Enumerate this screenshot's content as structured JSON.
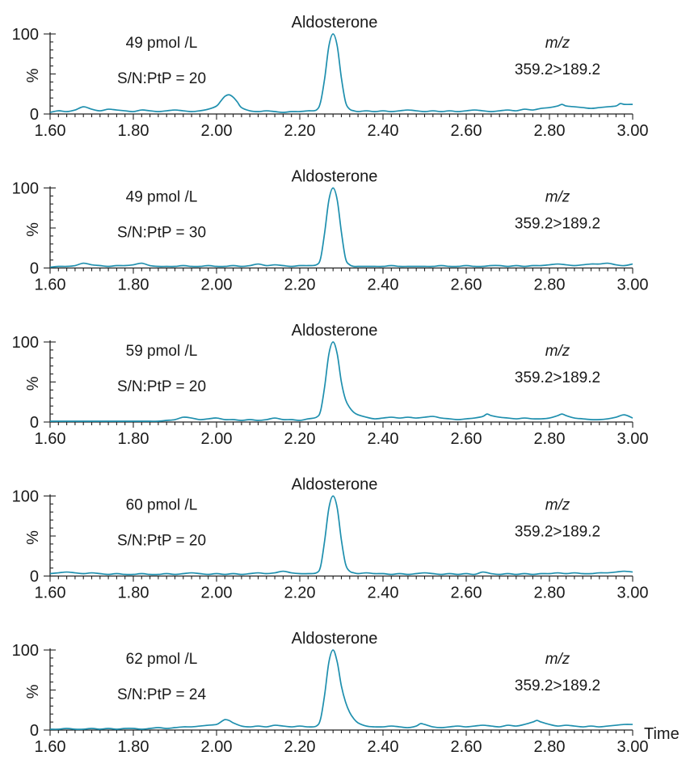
{
  "colors": {
    "trace": "#1e8fae",
    "axis": "#222222",
    "text": "#1a1a1a"
  },
  "x_axis_title": "Time",
  "chart_data": [
    {
      "type": "line",
      "title": "Aldosterone",
      "ylabel": "%",
      "xlim": [
        1.6,
        3.0
      ],
      "ylim": [
        0,
        100
      ],
      "x_ticks": [
        "1.60",
        "1.80",
        "2.00",
        "2.20",
        "2.40",
        "2.60",
        "2.80",
        "3.00"
      ],
      "y_ticks": [
        "100",
        "0"
      ],
      "annotations": {
        "concentration": "49 pmol /L",
        "snr": "S/N:PtP = 20",
        "mz_label": "m/z",
        "transition": "359.2>189.2"
      },
      "series": [
        {
          "x": [
            1.6,
            1.62,
            1.64,
            1.66,
            1.68,
            1.7,
            1.72,
            1.74,
            1.76,
            1.78,
            1.8,
            1.82,
            1.84,
            1.86,
            1.88,
            1.9,
            1.92,
            1.94,
            1.96,
            1.98,
            2.0,
            2.01,
            2.02,
            2.03,
            2.04,
            2.05,
            2.06,
            2.08,
            2.1,
            2.12,
            2.14,
            2.16,
            2.18,
            2.2,
            2.22,
            2.24,
            2.25,
            2.26,
            2.27,
            2.28,
            2.29,
            2.3,
            2.31,
            2.32,
            2.33,
            2.34,
            2.36,
            2.38,
            2.4,
            2.42,
            2.44,
            2.46,
            2.48,
            2.5,
            2.52,
            2.54,
            2.56,
            2.58,
            2.6,
            2.62,
            2.64,
            2.66,
            2.68,
            2.7,
            2.72,
            2.74,
            2.76,
            2.78,
            2.8,
            2.82,
            2.83,
            2.84,
            2.86,
            2.88,
            2.9,
            2.92,
            2.94,
            2.96,
            2.97,
            2.98,
            3.0
          ],
          "y": [
            2,
            4,
            3,
            5,
            9,
            6,
            4,
            6,
            5,
            4,
            3,
            5,
            4,
            3,
            4,
            5,
            4,
            3,
            4,
            6,
            10,
            16,
            22,
            24,
            21,
            15,
            8,
            4,
            3,
            4,
            3,
            2,
            3,
            3,
            4,
            5,
            15,
            45,
            85,
            100,
            85,
            45,
            15,
            6,
            4,
            3,
            4,
            3,
            4,
            3,
            4,
            5,
            4,
            3,
            4,
            3,
            4,
            3,
            4,
            5,
            4,
            3,
            4,
            5,
            4,
            6,
            5,
            7,
            8,
            10,
            12,
            10,
            9,
            8,
            7,
            8,
            9,
            10,
            13,
            12,
            12
          ]
        }
      ]
    },
    {
      "type": "line",
      "title": "Aldosterone",
      "ylabel": "%",
      "xlim": [
        1.6,
        3.0
      ],
      "ylim": [
        0,
        100
      ],
      "x_ticks": [
        "1.60",
        "1.80",
        "2.00",
        "2.20",
        "2.40",
        "2.60",
        "2.80",
        "3.00"
      ],
      "y_ticks": [
        "100",
        "0"
      ],
      "annotations": {
        "concentration": "49 pmol /L",
        "snr": "S/N:PtP = 30",
        "mz_label": "m/z",
        "transition": "359.2>189.2"
      },
      "series": [
        {
          "x": [
            1.6,
            1.62,
            1.64,
            1.66,
            1.68,
            1.7,
            1.72,
            1.74,
            1.76,
            1.78,
            1.8,
            1.82,
            1.84,
            1.86,
            1.88,
            1.9,
            1.92,
            1.94,
            1.96,
            1.98,
            2.0,
            2.02,
            2.04,
            2.06,
            2.08,
            2.1,
            2.12,
            2.14,
            2.16,
            2.18,
            2.2,
            2.22,
            2.24,
            2.25,
            2.26,
            2.27,
            2.28,
            2.29,
            2.3,
            2.31,
            2.32,
            2.33,
            2.34,
            2.36,
            2.38,
            2.4,
            2.42,
            2.44,
            2.46,
            2.48,
            2.5,
            2.52,
            2.54,
            2.56,
            2.58,
            2.6,
            2.62,
            2.64,
            2.66,
            2.68,
            2.7,
            2.72,
            2.74,
            2.76,
            2.78,
            2.8,
            2.82,
            2.84,
            2.86,
            2.88,
            2.9,
            2.92,
            2.94,
            2.96,
            2.98,
            3.0
          ],
          "y": [
            1,
            2,
            2,
            3,
            6,
            4,
            3,
            2,
            3,
            3,
            4,
            6,
            3,
            2,
            2,
            2,
            3,
            2,
            2,
            3,
            2,
            2,
            3,
            2,
            3,
            5,
            3,
            4,
            3,
            2,
            3,
            3,
            4,
            12,
            45,
            85,
            100,
            85,
            45,
            12,
            4,
            2,
            2,
            2,
            2,
            2,
            3,
            2,
            2,
            2,
            2,
            2,
            3,
            2,
            2,
            3,
            2,
            2,
            3,
            3,
            2,
            3,
            2,
            3,
            3,
            4,
            5,
            4,
            3,
            4,
            5,
            5,
            6,
            4,
            3,
            5
          ]
        }
      ]
    },
    {
      "type": "line",
      "title": "Aldosterone",
      "ylabel": "%",
      "xlim": [
        1.6,
        3.0
      ],
      "ylim": [
        0,
        100
      ],
      "x_ticks": [
        "1.60",
        "1.80",
        "2.00",
        "2.20",
        "2.40",
        "2.60",
        "2.80",
        "3.00"
      ],
      "y_ticks": [
        "100",
        "0"
      ],
      "annotations": {
        "concentration": "59 pmol /L",
        "snr": "S/N:PtP = 20",
        "mz_label": "m/z",
        "transition": "359.2>189.2"
      },
      "series": [
        {
          "x": [
            1.6,
            1.62,
            1.64,
            1.66,
            1.68,
            1.7,
            1.72,
            1.74,
            1.76,
            1.78,
            1.8,
            1.82,
            1.84,
            1.86,
            1.88,
            1.9,
            1.92,
            1.94,
            1.96,
            1.98,
            2.0,
            2.02,
            2.04,
            2.06,
            2.08,
            2.1,
            2.12,
            2.14,
            2.16,
            2.18,
            2.2,
            2.22,
            2.24,
            2.25,
            2.26,
            2.27,
            2.28,
            2.29,
            2.3,
            2.31,
            2.32,
            2.33,
            2.34,
            2.36,
            2.38,
            2.4,
            2.42,
            2.44,
            2.46,
            2.48,
            2.5,
            2.52,
            2.54,
            2.56,
            2.58,
            2.6,
            2.62,
            2.64,
            2.65,
            2.66,
            2.68,
            2.7,
            2.72,
            2.74,
            2.76,
            2.78,
            2.8,
            2.82,
            2.83,
            2.84,
            2.86,
            2.88,
            2.9,
            2.92,
            2.94,
            2.96,
            2.98,
            3.0
          ],
          "y": [
            1,
            1,
            1,
            1,
            1,
            1,
            1,
            1,
            1,
            1,
            1,
            1,
            1,
            1,
            2,
            3,
            6,
            5,
            3,
            4,
            5,
            3,
            3,
            2,
            3,
            2,
            3,
            5,
            3,
            3,
            2,
            4,
            6,
            14,
            45,
            85,
            100,
            85,
            50,
            28,
            18,
            12,
            9,
            6,
            4,
            5,
            6,
            5,
            6,
            5,
            6,
            7,
            5,
            4,
            3,
            4,
            5,
            7,
            10,
            8,
            6,
            5,
            4,
            5,
            4,
            4,
            5,
            8,
            10,
            8,
            5,
            4,
            3,
            3,
            4,
            6,
            9,
            5
          ]
        }
      ]
    },
    {
      "type": "line",
      "title": "Aldosterone",
      "ylabel": "%",
      "xlim": [
        1.6,
        3.0
      ],
      "ylim": [
        0,
        100
      ],
      "x_ticks": [
        "1.60",
        "1.80",
        "2.00",
        "2.20",
        "2.40",
        "2.60",
        "2.80",
        "3.00"
      ],
      "y_ticks": [
        "100",
        "0"
      ],
      "annotations": {
        "concentration": "60 pmol /L",
        "snr": "S/N:PtP = 20",
        "mz_label": "m/z",
        "transition": "359.2>189.2"
      },
      "series": [
        {
          "x": [
            1.6,
            1.62,
            1.64,
            1.66,
            1.68,
            1.7,
            1.72,
            1.74,
            1.76,
            1.78,
            1.8,
            1.82,
            1.84,
            1.86,
            1.88,
            1.9,
            1.92,
            1.94,
            1.96,
            1.98,
            2.0,
            2.02,
            2.04,
            2.06,
            2.08,
            2.1,
            2.12,
            2.14,
            2.16,
            2.18,
            2.2,
            2.22,
            2.24,
            2.25,
            2.26,
            2.27,
            2.28,
            2.29,
            2.3,
            2.31,
            2.32,
            2.33,
            2.34,
            2.36,
            2.38,
            2.4,
            2.42,
            2.44,
            2.46,
            2.48,
            2.5,
            2.52,
            2.54,
            2.56,
            2.58,
            2.6,
            2.62,
            2.64,
            2.66,
            2.68,
            2.7,
            2.72,
            2.74,
            2.76,
            2.78,
            2.8,
            2.82,
            2.84,
            2.86,
            2.88,
            2.9,
            2.92,
            2.94,
            2.96,
            2.98,
            3.0
          ],
          "y": [
            3,
            4,
            5,
            4,
            3,
            4,
            3,
            2,
            3,
            2,
            2,
            3,
            2,
            2,
            3,
            2,
            3,
            4,
            3,
            2,
            3,
            2,
            3,
            2,
            3,
            4,
            3,
            4,
            6,
            4,
            3,
            3,
            4,
            12,
            45,
            85,
            100,
            85,
            45,
            15,
            6,
            4,
            3,
            4,
            3,
            3,
            2,
            3,
            2,
            3,
            4,
            3,
            2,
            3,
            2,
            3,
            2,
            5,
            3,
            2,
            3,
            2,
            3,
            2,
            3,
            3,
            4,
            3,
            4,
            3,
            3,
            4,
            4,
            5,
            6,
            5
          ]
        }
      ]
    },
    {
      "type": "line",
      "title": "Aldosterone",
      "ylabel": "%",
      "xlim": [
        1.6,
        3.0
      ],
      "ylim": [
        0,
        100
      ],
      "x_ticks": [
        "1.60",
        "1.80",
        "2.00",
        "2.20",
        "2.40",
        "2.60",
        "2.80",
        "3.00"
      ],
      "y_ticks": [
        "100",
        "0"
      ],
      "annotations": {
        "concentration": "62 pmol /L",
        "snr": "S/N:PtP = 24",
        "mz_label": "m/z",
        "transition": "359.2>189.2"
      },
      "series": [
        {
          "x": [
            1.6,
            1.62,
            1.64,
            1.66,
            1.68,
            1.7,
            1.72,
            1.74,
            1.76,
            1.78,
            1.8,
            1.82,
            1.84,
            1.86,
            1.88,
            1.9,
            1.92,
            1.94,
            1.96,
            1.98,
            2.0,
            2.01,
            2.02,
            2.03,
            2.04,
            2.06,
            2.08,
            2.1,
            2.12,
            2.14,
            2.16,
            2.18,
            2.2,
            2.22,
            2.24,
            2.25,
            2.26,
            2.27,
            2.28,
            2.29,
            2.3,
            2.31,
            2.32,
            2.33,
            2.34,
            2.36,
            2.38,
            2.4,
            2.42,
            2.44,
            2.46,
            2.48,
            2.49,
            2.5,
            2.52,
            2.54,
            2.56,
            2.58,
            2.6,
            2.62,
            2.64,
            2.66,
            2.68,
            2.7,
            2.72,
            2.74,
            2.76,
            2.77,
            2.78,
            2.8,
            2.82,
            2.84,
            2.86,
            2.88,
            2.9,
            2.92,
            2.94,
            2.96,
            2.98,
            3.0
          ],
          "y": [
            1,
            1,
            2,
            1,
            1,
            2,
            1,
            2,
            1,
            2,
            2,
            1,
            2,
            3,
            2,
            3,
            4,
            4,
            5,
            6,
            7,
            10,
            13,
            12,
            9,
            5,
            4,
            5,
            4,
            6,
            5,
            4,
            5,
            4,
            5,
            14,
            45,
            85,
            100,
            85,
            55,
            35,
            22,
            14,
            9,
            5,
            4,
            4,
            5,
            4,
            3,
            5,
            8,
            7,
            4,
            3,
            4,
            5,
            4,
            5,
            6,
            5,
            4,
            6,
            5,
            7,
            10,
            12,
            10,
            7,
            5,
            6,
            5,
            4,
            5,
            4,
            5,
            6,
            7,
            7
          ]
        }
      ]
    }
  ]
}
